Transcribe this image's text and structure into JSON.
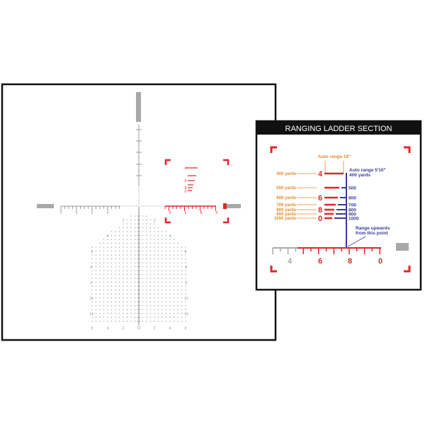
{
  "colors": {
    "red": "#e0262b",
    "orange": "#e08a2c",
    "blue": "#3a3a9a",
    "gray": "#a8a8a8",
    "black": "#111111"
  },
  "reticle": {
    "left_scale_labels": [
      "0",
      "8",
      "6",
      "4"
    ],
    "right_scale_labels": [
      "4",
      "6",
      "8",
      "0"
    ],
    "mini_ladder_labels": [
      "4",
      "6",
      "8",
      "0"
    ],
    "grid_side_labels": [
      "2",
      "4",
      "6",
      "8",
      "0",
      "12",
      "14"
    ],
    "grid_bottom_labels": [
      "6",
      "4",
      "2",
      "0",
      "2",
      "4",
      "6"
    ]
  },
  "ladder_panel": {
    "title": "RANGING LADDER SECTION",
    "auto_range_18": "Auto range 18\"",
    "auto_range_510_line1": "Auto range 5'10\"",
    "auto_range_510_line2": "400 yards",
    "range_upwards_line1": "Range upwards",
    "range_upwards_line2": "from this point",
    "rows": [
      {
        "yards": "400 yards",
        "numeral": "4",
        "blue": ""
      },
      {
        "yards": "500 yards",
        "numeral": "",
        "blue": "500"
      },
      {
        "yards": "600 yards",
        "numeral": "6",
        "blue": "600"
      },
      {
        "yards": "700 yards",
        "numeral": "",
        "blue": "700"
      },
      {
        "yards": "800 yards",
        "numeral": "8",
        "blue": "800"
      },
      {
        "yards": "900 yards",
        "numeral": "",
        "blue": "900"
      },
      {
        "yards": "1000 yards",
        "numeral": "0",
        "blue": "1000"
      }
    ],
    "scale_labels": [
      "4",
      "6",
      "8",
      "0"
    ]
  }
}
